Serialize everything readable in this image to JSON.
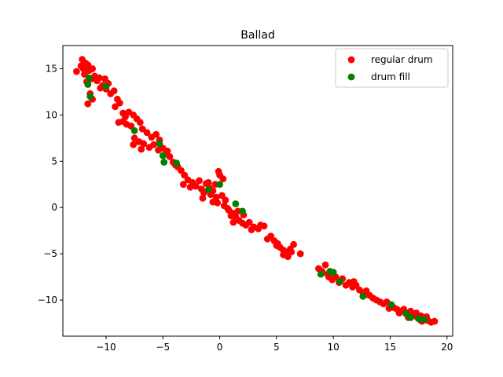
{
  "chart_data": {
    "type": "scatter",
    "title": "Ballad",
    "xlabel": "",
    "ylabel": "",
    "xlim": [
      -13.8,
      20.5
    ],
    "ylim": [
      -13.9,
      17.5
    ],
    "xticks": [
      -10,
      -5,
      0,
      5,
      10,
      15,
      20
    ],
    "yticks": [
      -10,
      -5,
      0,
      5,
      10,
      15
    ],
    "grid": false,
    "legend": {
      "position": "top-right"
    },
    "series": [
      {
        "name": "regular drum",
        "color": "#ff0000",
        "points": [
          [
            -12.6,
            14.7
          ],
          [
            -12.2,
            15.3
          ],
          [
            -12.1,
            16.0
          ],
          [
            -11.8,
            15.6
          ],
          [
            -11.6,
            15.4
          ],
          [
            -11.5,
            14.8
          ],
          [
            -11.2,
            15.0
          ],
          [
            -11.9,
            14.4
          ],
          [
            -11.7,
            13.6
          ],
          [
            -11.3,
            13.9
          ],
          [
            -11.0,
            14.2
          ],
          [
            -10.8,
            13.7
          ],
          [
            -10.6,
            14.0
          ],
          [
            -10.3,
            13.2
          ],
          [
            -10.5,
            12.9
          ],
          [
            -10.0,
            12.8
          ],
          [
            -9.8,
            13.4
          ],
          [
            -9.6,
            12.3
          ],
          [
            -9.3,
            12.6
          ],
          [
            -11.4,
            12.3
          ],
          [
            -11.6,
            11.2
          ],
          [
            -11.2,
            11.7
          ],
          [
            -9.0,
            11.7
          ],
          [
            -8.8,
            11.3
          ],
          [
            -9.2,
            10.9
          ],
          [
            -8.5,
            10.2
          ],
          [
            -8.3,
            9.8
          ],
          [
            -8.0,
            10.3
          ],
          [
            -8.5,
            9.3
          ],
          [
            -8.2,
            9.0
          ],
          [
            -7.8,
            8.8
          ],
          [
            -7.6,
            10.0
          ],
          [
            -7.3,
            9.6
          ],
          [
            -7.0,
            9.2
          ],
          [
            -6.8,
            8.5
          ],
          [
            -6.4,
            8.1
          ],
          [
            -7.5,
            7.5
          ],
          [
            -7.1,
            7.1
          ],
          [
            -7.6,
            6.8
          ],
          [
            -6.7,
            6.9
          ],
          [
            -6.9,
            6.3
          ],
          [
            -6.2,
            6.5
          ],
          [
            -5.8,
            6.8
          ],
          [
            -5.4,
            6.2
          ],
          [
            -5.0,
            6.4
          ],
          [
            -4.7,
            5.8
          ],
          [
            -4.4,
            5.5
          ],
          [
            -5.3,
            7.3
          ],
          [
            -5.6,
            7.9
          ],
          [
            -4.1,
            4.9
          ],
          [
            -3.7,
            4.4
          ],
          [
            -3.4,
            4.0
          ],
          [
            -3.1,
            3.5
          ],
          [
            -2.8,
            3.0
          ],
          [
            -2.4,
            2.7
          ],
          [
            -2.1,
            2.3
          ],
          [
            -1.8,
            2.9
          ],
          [
            -1.6,
            2.0
          ],
          [
            -1.2,
            2.6
          ],
          [
            -0.9,
            2.1
          ],
          [
            -3.2,
            2.5
          ],
          [
            -1.4,
            1.6
          ],
          [
            -0.6,
            1.8
          ],
          [
            -0.3,
            1.1
          ],
          [
            0.0,
            3.5
          ],
          [
            0.3,
            3.1
          ],
          [
            -0.1,
            3.9
          ],
          [
            0.2,
            1.3
          ],
          [
            0.5,
            0.8
          ],
          [
            -0.2,
            0.5
          ],
          [
            0.4,
            0.2
          ],
          [
            0.8,
            -0.3
          ],
          [
            1.1,
            -0.6
          ],
          [
            1.4,
            -1.0
          ],
          [
            1.7,
            -1.4
          ],
          [
            2.0,
            -1.7
          ],
          [
            2.3,
            -1.9
          ],
          [
            2.6,
            -1.6
          ],
          [
            3.0,
            -2.1
          ],
          [
            3.4,
            -2.3
          ],
          [
            1.2,
            -1.6
          ],
          [
            1.6,
            -0.4
          ],
          [
            2.1,
            -0.8
          ],
          [
            3.6,
            -1.9
          ],
          [
            -1.5,
            1.0
          ],
          [
            -0.8,
            1.4
          ],
          [
            -0.6,
            0.6
          ],
          [
            1.0,
            -0.9
          ],
          [
            2.8,
            -2.4
          ],
          [
            3.9,
            -2.0
          ],
          [
            4.5,
            -3.1
          ],
          [
            4.8,
            -3.6
          ],
          [
            5.0,
            -4.1
          ],
          [
            5.3,
            -4.3
          ],
          [
            5.6,
            -4.6
          ],
          [
            5.9,
            -4.9
          ],
          [
            6.2,
            -4.5
          ],
          [
            6.5,
            -4.0
          ],
          [
            6.0,
            -5.3
          ],
          [
            5.6,
            -5.1
          ],
          [
            7.1,
            -5.0
          ],
          [
            8.7,
            -6.6
          ],
          [
            9.0,
            -6.9
          ],
          [
            9.3,
            -6.2
          ],
          [
            9.6,
            -7.5
          ],
          [
            9.9,
            -7.8
          ],
          [
            10.2,
            -7.5
          ],
          [
            10.5,
            -8.1
          ],
          [
            10.8,
            -7.7
          ],
          [
            11.1,
            -8.4
          ],
          [
            11.4,
            -8.1
          ],
          [
            11.7,
            -8.6
          ],
          [
            12.0,
            -8.4
          ],
          [
            12.3,
            -8.9
          ],
          [
            12.6,
            -9.2
          ],
          [
            12.9,
            -9.0
          ],
          [
            13.2,
            -9.5
          ],
          [
            13.5,
            -9.8
          ],
          [
            13.8,
            -10.0
          ],
          [
            14.1,
            -10.2
          ],
          [
            14.4,
            -10.4
          ],
          [
            14.7,
            -10.2
          ],
          [
            15.0,
            -10.6
          ],
          [
            15.3,
            -10.8
          ],
          [
            15.6,
            -11.0
          ],
          [
            15.9,
            -11.2
          ],
          [
            16.2,
            -11.0
          ],
          [
            16.5,
            -11.4
          ],
          [
            16.8,
            -11.2
          ],
          [
            17.1,
            -11.6
          ],
          [
            17.4,
            -11.9
          ],
          [
            17.7,
            -11.7
          ],
          [
            18.0,
            -12.0
          ],
          [
            18.3,
            -12.2
          ],
          [
            18.6,
            -12.4
          ],
          [
            18.9,
            -12.3
          ],
          [
            16.9,
            -11.7
          ],
          [
            17.3,
            -11.4
          ],
          [
            16.6,
            -11.9
          ],
          [
            17.8,
            -12.3
          ],
          [
            -0.4,
            2.5
          ],
          [
            -1.0,
            2.7
          ],
          [
            -2.6,
            2.2
          ],
          [
            -4.6,
            6.1
          ],
          [
            -6.0,
            7.6
          ],
          [
            -8.9,
            9.2
          ],
          [
            -10.1,
            13.9
          ],
          [
            -12.0,
            15.0
          ],
          [
            -3.9,
            4.6
          ],
          [
            0.7,
            -0.1
          ],
          [
            4.2,
            -3.4
          ],
          [
            5.1,
            -3.9
          ],
          [
            6.3,
            -4.8
          ],
          [
            9.5,
            -7.2
          ],
          [
            11.8,
            -8.0
          ],
          [
            13.0,
            -9.4
          ],
          [
            14.9,
            -10.9
          ],
          [
            15.8,
            -11.4
          ],
          [
            17.6,
            -12.1
          ],
          [
            18.2,
            -11.8
          ]
        ]
      },
      {
        "name": "drum fill",
        "color": "#008000",
        "points": [
          [
            -11.5,
            14.0
          ],
          [
            -11.6,
            13.3
          ],
          [
            -11.4,
            12.0
          ],
          [
            -10.0,
            13.1
          ],
          [
            -7.5,
            8.3
          ],
          [
            -5.3,
            6.9
          ],
          [
            -5.0,
            5.6
          ],
          [
            -4.9,
            4.9
          ],
          [
            -3.8,
            4.8
          ],
          [
            -1.0,
            1.9
          ],
          [
            0.0,
            2.5
          ],
          [
            1.4,
            0.4
          ],
          [
            2.0,
            -0.4
          ],
          [
            8.9,
            -7.2
          ],
          [
            9.7,
            -6.9
          ],
          [
            10.0,
            -7.0
          ],
          [
            10.6,
            -8.0
          ],
          [
            12.6,
            -9.6
          ],
          [
            15.1,
            -10.5
          ],
          [
            16.4,
            -11.5
          ],
          [
            16.8,
            -11.9
          ],
          [
            17.5,
            -12.0
          ],
          [
            18.0,
            -12.1
          ]
        ]
      }
    ]
  }
}
